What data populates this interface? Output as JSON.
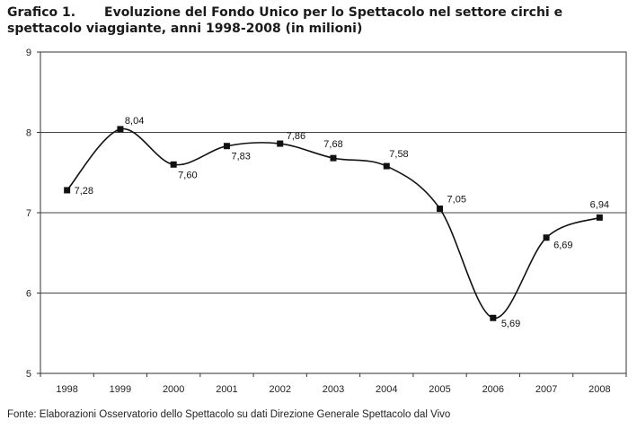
{
  "header": {
    "number": "Grafico 1.",
    "text": "Evoluzione del Fondo Unico per lo Spettacolo nel settore circhi e spettacolo viaggiante, anni 1998-2008 (in milioni)"
  },
  "source": "Fonte: Elaborazioni Osservatorio dello Spettacolo su dati Direzione Generale Spettacolo dal Vivo",
  "chart_data": {
    "type": "line",
    "title": "Evoluzione del Fondo Unico per lo Spettacolo nel settore circhi e spettacolo viaggiante, anni 1998-2008 (in milioni)",
    "categories": [
      "1998",
      "1999",
      "2000",
      "2001",
      "2002",
      "2003",
      "2004",
      "2005",
      "2006",
      "2007",
      "2008"
    ],
    "values": [
      7.28,
      8.04,
      7.6,
      7.83,
      7.86,
      7.68,
      7.58,
      7.05,
      5.69,
      6.69,
      6.94
    ],
    "data_labels": [
      "7,28",
      "8,04",
      "7,60",
      "7,83",
      "7,86",
      "7,68",
      "7,58",
      "7,05",
      "5,69",
      "6,69",
      "6,94"
    ],
    "y_ticks": [
      "5",
      "6",
      "7",
      "8",
      "9"
    ],
    "ylim": [
      5,
      9
    ],
    "grid": true,
    "legend": "none",
    "line_color": "#111111",
    "marker": "square"
  }
}
